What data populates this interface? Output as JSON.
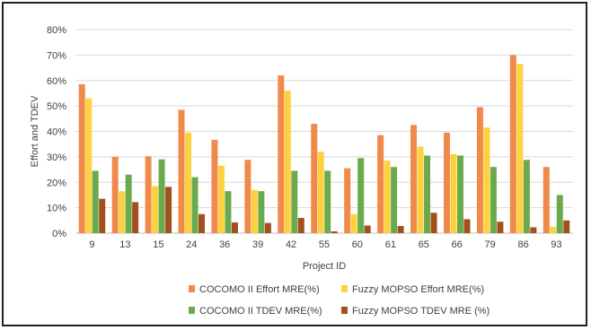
{
  "chart_data": {
    "type": "bar",
    "title": "",
    "xlabel": "Project ID",
    "ylabel": "Effort and TDEV",
    "ylim": [
      0,
      80
    ],
    "yticks": [
      "0%",
      "10%",
      "20%",
      "30%",
      "40%",
      "50%",
      "60%",
      "70%",
      "80%"
    ],
    "grid": true,
    "legend_position": "bottom",
    "categories": [
      "9",
      "13",
      "15",
      "24",
      "36",
      "39",
      "42",
      "55",
      "60",
      "61",
      "65",
      "66",
      "79",
      "86",
      "93"
    ],
    "series": [
      {
        "name": "COCOMO II Effort MRE(%)",
        "color": "#f08a4b",
        "values": [
          58.5,
          30,
          30.2,
          48.5,
          36.7,
          28.8,
          62,
          43,
          25.5,
          38.5,
          42.5,
          39.5,
          49.5,
          70,
          26
        ]
      },
      {
        "name": "Fuzzy MOPSO Effort MRE(%)",
        "color": "#fdd23f",
        "values": [
          53,
          16.5,
          18.5,
          39.5,
          26.5,
          17,
          56,
          32,
          7.5,
          28.5,
          34,
          31,
          41.5,
          66.5,
          2.5
        ]
      },
      {
        "name": "COCOMO II TDEV MRE(%)",
        "color": "#6aaa4d",
        "values": [
          24.5,
          23,
          29,
          22,
          16.5,
          16.5,
          24.5,
          24.5,
          29.5,
          26,
          30.5,
          30.5,
          26,
          28.8,
          15
        ]
      },
      {
        "name": "Fuzzy MOPSO TDEV MRE (%)",
        "color": "#a3501e",
        "values": [
          13.5,
          12.2,
          18.2,
          7.5,
          4.2,
          4,
          6,
          0.7,
          3,
          2.8,
          8,
          5.5,
          4.5,
          2.3,
          5
        ]
      }
    ]
  }
}
